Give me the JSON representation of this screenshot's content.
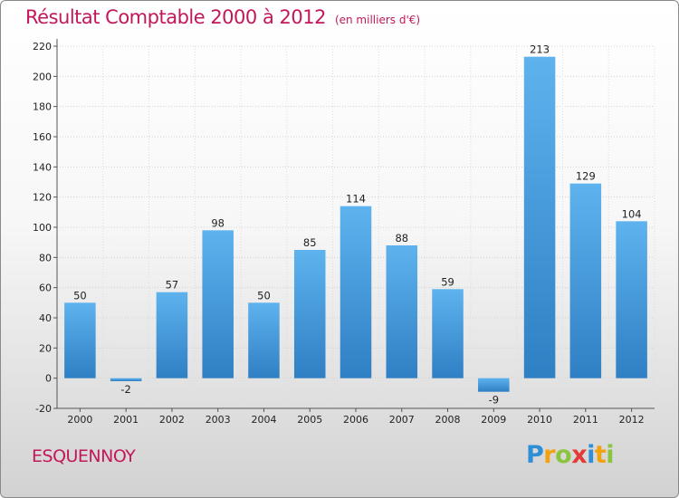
{
  "chart_data": {
    "type": "bar",
    "title": "Résultat Comptable 2000 à 2012",
    "subtitle": "(en milliers d'€)",
    "categories": [
      "2000",
      "2001",
      "2002",
      "2003",
      "2004",
      "2005",
      "2006",
      "2007",
      "2008",
      "2009",
      "2010",
      "2011",
      "2012"
    ],
    "values": [
      50,
      -2,
      57,
      98,
      50,
      85,
      114,
      88,
      59,
      -9,
      213,
      129,
      104
    ],
    "ylim": [
      -20,
      220
    ],
    "yticks": [
      -20,
      0,
      20,
      40,
      60,
      80,
      100,
      120,
      140,
      160,
      180,
      200,
      220
    ],
    "grid": true,
    "bar_color": "#4aa3e6"
  },
  "commune": "ESQUENNOY",
  "logo": {
    "p": "P",
    "r": "r",
    "o": "o",
    "x": "x",
    "i": "i",
    "t": "t",
    "i2": "i"
  },
  "colors": {
    "accent": "#c2185b"
  }
}
